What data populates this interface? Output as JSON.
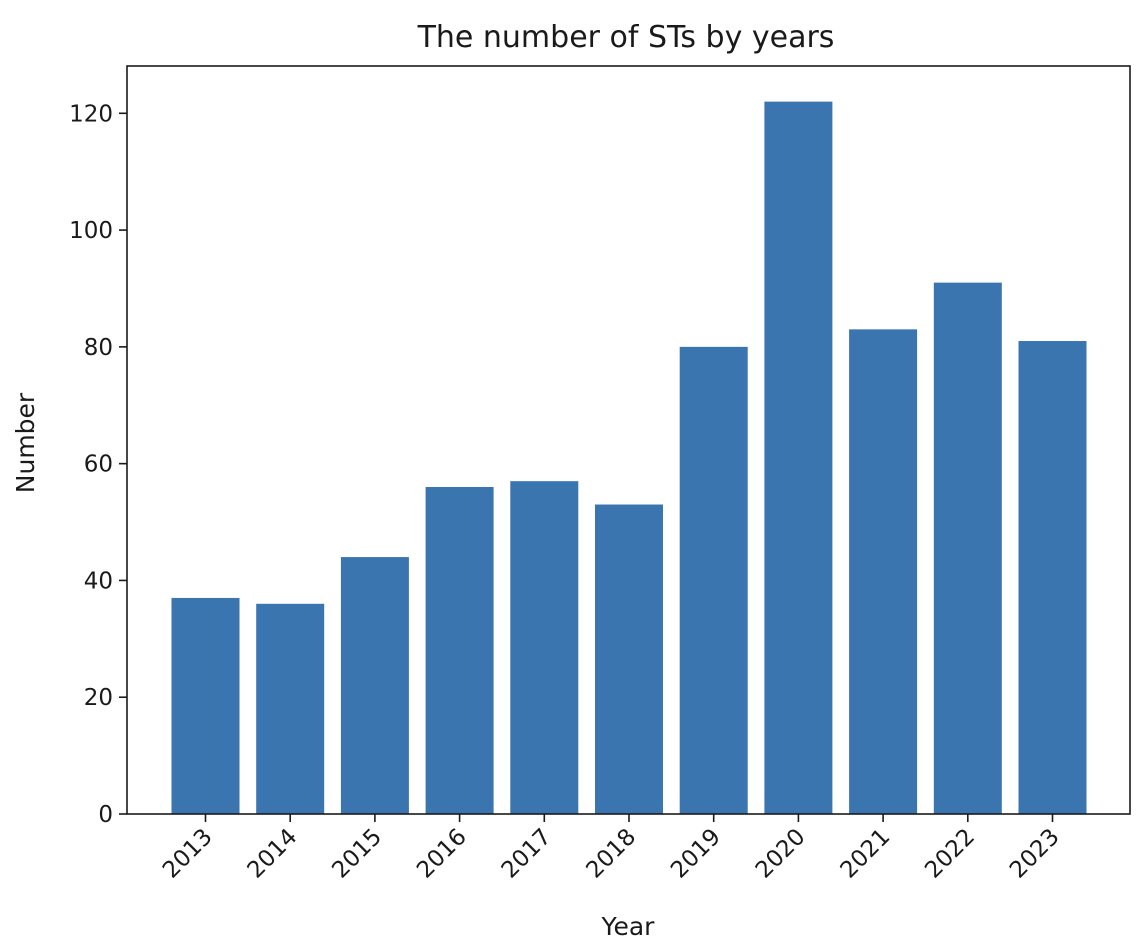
{
  "chart_data": {
    "type": "bar",
    "title": "The number of STs by years",
    "xlabel": "Year",
    "ylabel": "Number",
    "categories": [
      "2013",
      "2014",
      "2015",
      "2016",
      "2017",
      "2018",
      "2019",
      "2020",
      "2021",
      "2022",
      "2023"
    ],
    "values": [
      37,
      36,
      44,
      56,
      57,
      53,
      80,
      122,
      83,
      91,
      81
    ],
    "ylim": [
      0,
      128.1
    ],
    "yticks": [
      0,
      20,
      40,
      60,
      80,
      100,
      120
    ],
    "grid": false,
    "legend": "none",
    "bar_color": "#3a75af",
    "axis_color": "#1a1a1a"
  }
}
